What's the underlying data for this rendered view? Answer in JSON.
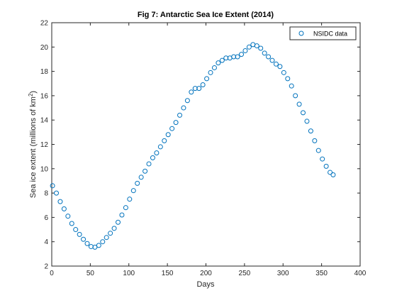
{
  "chart_data": {
    "type": "scatter",
    "title": "Fig 7: Antarctic Sea Ice Extent (2014)",
    "xlabel": "Days",
    "ylabel_main": "Sea ice extent (millions of km",
    "ylabel_sup": "2",
    "ylabel_end": ")",
    "xlim": [
      0,
      400
    ],
    "ylim": [
      2,
      22
    ],
    "x_ticks": [
      "0",
      "50",
      "100",
      "150",
      "200",
      "250",
      "300",
      "350",
      "400"
    ],
    "y_ticks": [
      "2",
      "4",
      "6",
      "8",
      "10",
      "12",
      "14",
      "16",
      "18",
      "20",
      "22"
    ],
    "legend_position": "top-right",
    "grid": false,
    "series": [
      {
        "name": "NSIDC data",
        "color": "#0072BD",
        "marker": "circle",
        "x": [
          1,
          6,
          11,
          16,
          21,
          26,
          31,
          36,
          41,
          46,
          51,
          56,
          61,
          66,
          71,
          76,
          81,
          86,
          91,
          96,
          101,
          106,
          111,
          116,
          121,
          126,
          131,
          136,
          141,
          146,
          151,
          156,
          161,
          166,
          171,
          176,
          181,
          186,
          191,
          196,
          201,
          206,
          211,
          216,
          221,
          226,
          231,
          236,
          241,
          246,
          251,
          256,
          261,
          266,
          271,
          276,
          281,
          286,
          291,
          296,
          301,
          306,
          311,
          316,
          321,
          326,
          331,
          336,
          341,
          346,
          351,
          356,
          361,
          365
        ],
        "y": [
          8.6,
          8.0,
          7.3,
          6.7,
          6.1,
          5.5,
          5.0,
          4.6,
          4.2,
          3.85,
          3.6,
          3.55,
          3.7,
          4.0,
          4.35,
          4.7,
          5.1,
          5.6,
          6.2,
          6.8,
          7.5,
          8.2,
          8.8,
          9.3,
          9.8,
          10.4,
          10.9,
          11.3,
          11.8,
          12.3,
          12.8,
          13.3,
          13.8,
          14.4,
          15.0,
          15.6,
          16.3,
          16.6,
          16.6,
          16.9,
          17.4,
          17.9,
          18.3,
          18.7,
          18.9,
          19.1,
          19.1,
          19.2,
          19.2,
          19.4,
          19.7,
          20.0,
          20.2,
          20.1,
          19.9,
          19.5,
          19.2,
          18.9,
          18.6,
          18.4,
          17.9,
          17.4,
          16.8,
          16.0,
          15.3,
          14.6,
          13.9,
          13.1,
          12.3,
          11.5,
          10.8,
          10.2,
          9.7,
          9.5
        ]
      }
    ]
  }
}
